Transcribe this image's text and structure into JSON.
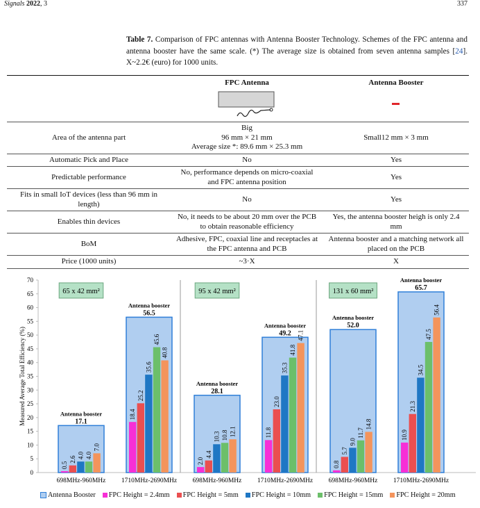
{
  "header": {
    "journal": "Signals",
    "year": "2022",
    "volume": ", 3",
    "page": "337"
  },
  "caption": {
    "label": "Table 7.",
    "text": " Comparison of FPC antennas with Antenna Booster Technology. Schemes of the FPC antenna and antenna booster have the same scale. (*) The average size is obtained from seven antenna samples [",
    "ref": "24",
    "text2": "]. X~2.2€ (euro) for 1000 units."
  },
  "table": {
    "columns": [
      "FPC Antenna",
      "Antenna Booster"
    ],
    "rows": [
      [
        "Area of the antenna part",
        [
          "Big",
          "96 mm × 21 mm",
          "Average size *: 89.6 mm × 25.3 mm"
        ],
        "Small12 mm × 3 mm"
      ],
      [
        "Automatic Pick and Place",
        "No",
        "Yes"
      ],
      [
        "Predictable performance",
        "No, performance depends on micro-coaxial and FPC antenna position",
        "Yes"
      ],
      [
        "Fits in small IoT devices (less than 96 mm in length)",
        "No",
        "Yes"
      ],
      [
        "Enables thin devices",
        "No, it needs to be about 20 mm over the PCB to obtain reasonable efficiency",
        "Yes, the antenna booster heigh is only 2.4 mm"
      ],
      [
        "BoM",
        "Adhesive, FPC, coaxial line and receptacles at the FPC antenna and PCB",
        "Antenna booster and a matching network all placed on the PCB"
      ],
      [
        "Price (1000 units)",
        "~3·X",
        "X"
      ]
    ]
  },
  "chart_data": {
    "type": "bar",
    "y_label": "Measured Average Total Efficiency (%)",
    "categories": [
      "698MHz-960MHz",
      "1710MHz-2690MHz",
      "698MHz-960MHz",
      "1710MHz-2690MHz",
      "698MHz-960MHz",
      "1710MHz-2690MHz"
    ],
    "booster_label": "Antenna booster",
    "annotations": [
      "65 x 42 mm²",
      "95 x 42 mm²",
      "131 x 60 mm²"
    ],
    "series": [
      {
        "name": "Antenna Booster",
        "color": "#2f7fd8",
        "values": [
          17.1,
          56.5,
          28.1,
          49.2,
          52.0,
          65.7
        ],
        "value_labels": [
          "17.1",
          "56.5",
          "28.1",
          "49.2",
          "52.0",
          "65.7"
        ]
      },
      {
        "name": "FPC Height = 2.4mm",
        "color": "#f72fd6",
        "values": [
          0.5,
          18.4,
          2.0,
          11.8,
          0.8,
          10.9
        ],
        "value_labels": [
          "0.5",
          "18.4",
          "2.0",
          "11.8",
          "0.8",
          "10.9"
        ]
      },
      {
        "name": "FPC Height = 5mm",
        "color": "#ea4f50",
        "values": [
          2.6,
          25.2,
          4.4,
          23.0,
          5.7,
          21.3
        ],
        "value_labels": [
          "2.6",
          "25.2",
          "4.4",
          "23.0",
          "5.7",
          "21.3"
        ]
      },
      {
        "name": "FPC Height = 10mm",
        "color": "#1f77c4",
        "values": [
          4.0,
          35.6,
          10.3,
          35.3,
          9.0,
          34.5
        ],
        "value_labels": [
          "4.0",
          "35.6",
          "10.3",
          "35.3",
          "9.0",
          "34.5"
        ]
      },
      {
        "name": "FPC Height = 15mm",
        "color": "#6cbf6a",
        "values": [
          4.0,
          45.6,
          10.8,
          41.8,
          11.7,
          47.5
        ],
        "value_labels": [
          "4.0",
          "45.6",
          "10.8",
          "41.8",
          "11.7",
          "47.5"
        ]
      },
      {
        "name": "FPC Height = 20mm",
        "color": "#f4945c",
        "values": [
          7.0,
          40.8,
          12.1,
          47.1,
          14.8,
          56.4
        ],
        "value_labels": [
          "7.0",
          "40.8",
          "12.1",
          "47.1",
          "14.8",
          "56.4"
        ]
      }
    ],
    "ylim": [
      0,
      70
    ],
    "yticks": [
      0,
      5,
      10,
      15,
      20,
      25,
      30,
      35,
      40,
      45,
      50,
      55,
      60,
      65,
      70
    ],
    "grid": false
  }
}
